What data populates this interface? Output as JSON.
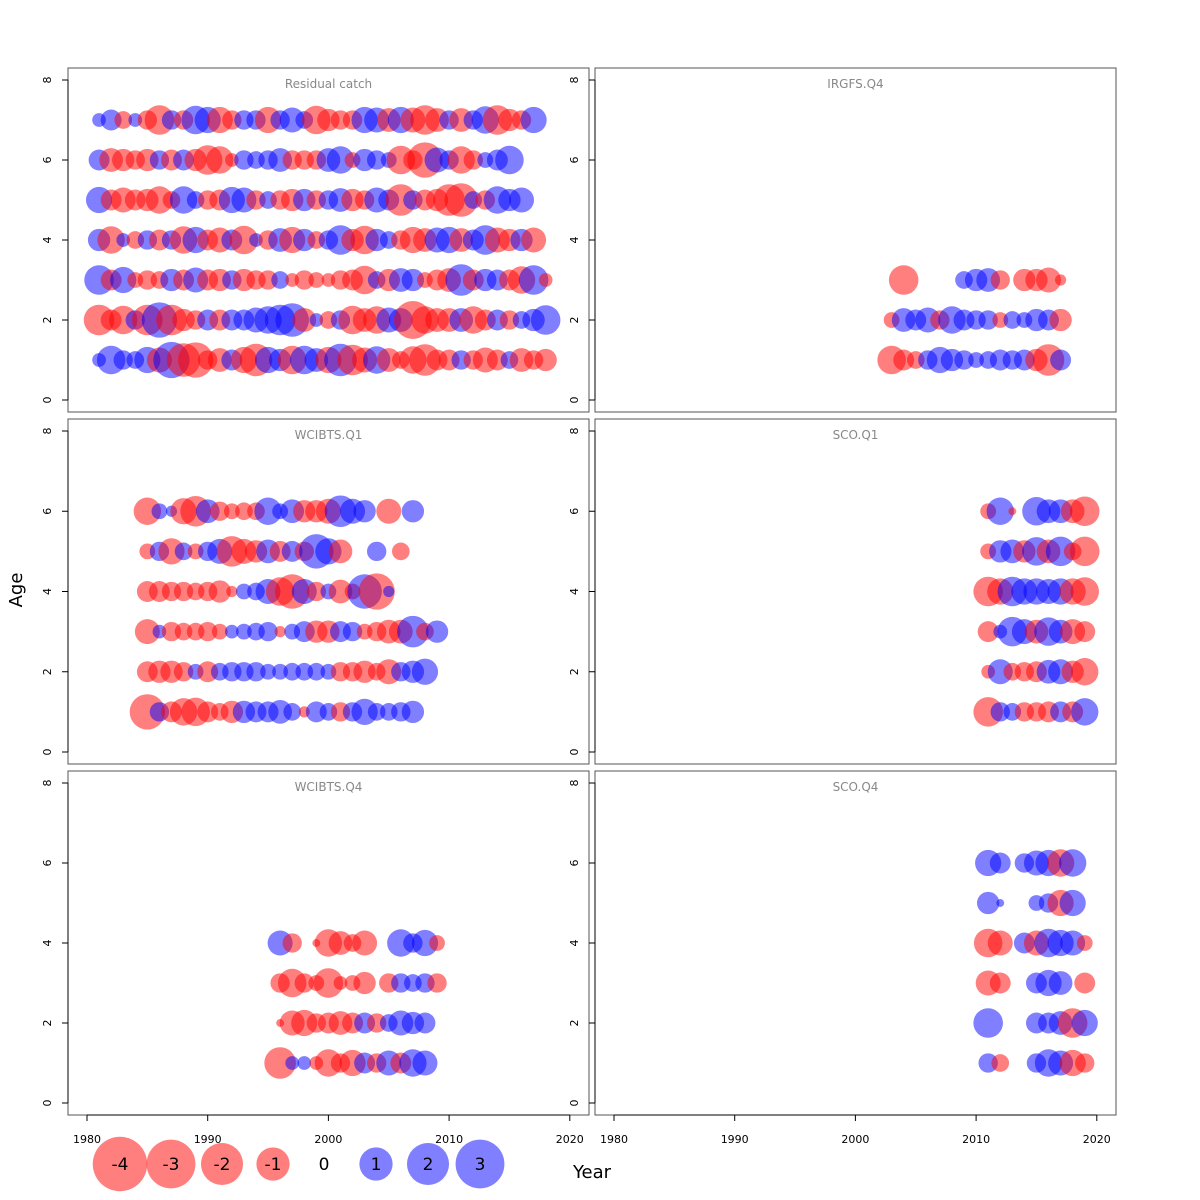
{
  "chart_data": {
    "type": "scatter",
    "subtype": "bubble-residuals",
    "xlabel": "Year",
    "ylabel": "Age",
    "xlim": [
      1980,
      2020
    ],
    "ylim": [
      0,
      8
    ],
    "x_ticks": [
      1980,
      1990,
      2000,
      2010,
      2020
    ],
    "y_ticks": [
      0,
      2,
      4,
      6,
      8
    ],
    "colors": {
      "positive": "#0000ff",
      "negative": "#ff0000",
      "fill_opacity": 0.5
    },
    "legend": {
      "placement": "bottom-left",
      "items": [
        {
          "label": "-4",
          "value": -4
        },
        {
          "label": "-3",
          "value": -3
        },
        {
          "label": "-2",
          "value": -2
        },
        {
          "label": "-1",
          "value": -1
        },
        {
          "label": "0",
          "value": 0
        },
        {
          "label": "1",
          "value": 1
        },
        {
          "label": "2",
          "value": 2
        },
        {
          "label": "3",
          "value": 3
        }
      ]
    },
    "panels": [
      {
        "title": "Residual catch",
        "rows": [
          {
            "age": 1,
            "start": 1981,
            "residuals": [
              0.3,
              1.3,
              0.6,
              0.5,
              1.1,
              -1.0,
              2.1,
              -1.8,
              -2.0,
              -0.6,
              -0.9,
              0.7,
              -1.1,
              -1.7,
              1.1,
              0.8,
              -1.3,
              1.3,
              0.9,
              -1.1,
              1.7,
              -1.5,
              -1.0,
              1.2,
              -0.9,
              -0.5,
              -1.2,
              -1.6,
              -0.7,
              -0.7,
              0.6,
              -0.6,
              -1.0,
              -0.7,
              0.5,
              -0.9,
              -0.6,
              -0.8
            ]
          },
          {
            "age": 2,
            "start": 1981,
            "residuals": [
              -1.5,
              -0.7,
              -1.3,
              0.6,
              -1.5,
              2.0,
              -1.5,
              -0.8,
              -0.6,
              0.7,
              -0.7,
              0.7,
              0.7,
              1.0,
              1.2,
              1.5,
              1.8,
              -0.9,
              0.3,
              -0.5,
              0.6,
              -1.3,
              -0.9,
              -1.2,
              1.0,
              0.9,
              -2.3,
              -1.2,
              -0.9,
              -0.9,
              0.9,
              -1.2,
              -0.7,
              0.7,
              -0.6,
              0.5,
              0.8,
              1.4
            ]
          },
          {
            "age": 3,
            "start": 1981,
            "residuals": [
              1.4,
              -0.7,
              1.1,
              -0.4,
              -0.6,
              -0.5,
              0.8,
              -0.7,
              1.0,
              -0.7,
              -0.8,
              0.6,
              -0.8,
              -0.6,
              -0.6,
              0.5,
              -0.3,
              -0.6,
              -0.4,
              -0.3,
              -0.6,
              -0.7,
              -1.3,
              0.5,
              -0.8,
              0.9,
              0.8,
              -0.4,
              -0.7,
              -0.9,
              1.6,
              -0.7,
              0.8,
              0.7,
              -0.7,
              -1.2,
              1.4,
              -0.3
            ]
          },
          {
            "age": 4,
            "start": 1981,
            "residuals": [
              0.8,
              -1.2,
              0.3,
              -0.5,
              0.6,
              -0.7,
              0.6,
              -1.2,
              1.1,
              -0.7,
              -1.0,
              0.7,
              -1.3,
              0.3,
              -0.6,
              0.9,
              -1.1,
              0.8,
              -0.5,
              0.6,
              1.4,
              -0.8,
              -1.3,
              0.8,
              0.5,
              -0.6,
              -1.1,
              -0.9,
              1.0,
              1.1,
              -0.9,
              0.7,
              1.4,
              -1.0,
              -0.8,
              0.8,
              -1.0
            ]
          },
          {
            "age": 5,
            "start": 1981,
            "residuals": [
              1.1,
              -0.7,
              -1.0,
              -0.7,
              -0.8,
              -1.2,
              -0.5,
              1.2,
              0.5,
              -0.6,
              -0.7,
              1.1,
              1.0,
              -0.6,
              0.5,
              -0.6,
              -0.8,
              0.8,
              -0.6,
              0.6,
              0.9,
              -0.8,
              -0.6,
              1.0,
              0.7,
              -1.6,
              0.6,
              -0.7,
              -0.8,
              -1.6,
              -1.8,
              0.5,
              -0.6,
              1.2,
              0.8,
              1.0
            ]
          },
          {
            "age": 6,
            "start": 1981,
            "residuals": [
              0.7,
              -0.9,
              -0.8,
              -0.6,
              -0.8,
              0.6,
              -0.7,
              0.7,
              -0.8,
              -1.4,
              -1.2,
              -0.3,
              0.6,
              0.5,
              0.6,
              0.9,
              -0.6,
              -0.6,
              -0.6,
              0.9,
              1.2,
              -0.4,
              0.8,
              0.6,
              0.4,
              -1.3,
              -0.6,
              -2.0,
              1.0,
              0.6,
              -1.2,
              -0.6,
              0.4,
              0.7,
              1.3
            ]
          },
          {
            "age": 7,
            "start": 1981,
            "residuals": [
              0.3,
              0.7,
              -0.5,
              0.3,
              -0.6,
              -1.4,
              0.6,
              -0.6,
              1.3,
              1.1,
              -1.1,
              -0.6,
              0.6,
              0.6,
              -1.1,
              0.6,
              1.0,
              0.5,
              -1.3,
              -0.8,
              -0.6,
              -0.6,
              1.1,
              1.0,
              -0.9,
              1.1,
              -1.0,
              -1.4,
              -0.9,
              0.6,
              -0.9,
              0.6,
              1.2,
              -1.4,
              -0.8,
              -0.6,
              1.1
            ]
          }
        ]
      },
      {
        "title": "IRGFS.Q4",
        "rows": [
          {
            "age": 1,
            "start": 2003,
            "residuals": [
              -1.3,
              -0.7,
              -0.5,
              0.6,
              1.1,
              0.8,
              0.6,
              0.4,
              0.5,
              0.7,
              0.6,
              0.7,
              -0.8,
              -1.6,
              0.7
            ]
          },
          {
            "age": 2,
            "start": 2003,
            "residuals": [
              -0.4,
              0.9,
              0.7,
              1.0,
              -0.6,
              1.2,
              0.7,
              0.6,
              0.6,
              -0.4,
              0.5,
              0.4,
              0.8,
              0.7,
              -0.8
            ]
          },
          {
            "age": 3,
            "start": 2004,
            "residuals": [
              -1.4,
              null,
              null,
              null,
              null,
              0.5,
              0.8,
              0.9,
              -0.6,
              null,
              -0.8,
              -0.8,
              -1.0,
              -0.2
            ]
          }
        ]
      },
      {
        "title": "WCIBTS.Q1",
        "rows": [
          {
            "age": 1,
            "start": 1985,
            "residuals": [
              -2.0,
              0.6,
              -0.7,
              -1.2,
              -1.3,
              -0.7,
              -0.5,
              -0.8,
              0.8,
              0.7,
              0.7,
              0.9,
              0.5,
              -0.2,
              0.7,
              0.5,
              -0.6,
              0.6,
              1.1,
              0.5,
              0.5,
              0.6,
              0.8
            ]
          },
          {
            "age": 2,
            "start": 1985,
            "residuals": [
              -0.7,
              -0.8,
              -0.8,
              -0.6,
              0.4,
              -0.7,
              0.5,
              0.6,
              0.6,
              0.6,
              0.4,
              0.4,
              0.5,
              0.5,
              0.5,
              0.4,
              -0.6,
              -0.6,
              -0.8,
              -0.5,
              -1.0,
              0.6,
              0.8,
              1.1
            ]
          },
          {
            "age": 3,
            "start": 1985,
            "residuals": [
              -1.0,
              0.3,
              -0.6,
              -0.5,
              -0.5,
              -0.6,
              -0.4,
              0.3,
              0.4,
              0.5,
              0.6,
              -0.2,
              0.4,
              0.7,
              -0.8,
              -0.8,
              0.7,
              0.6,
              -0.4,
              -0.6,
              -0.9,
              -0.9,
              1.6,
              -0.5,
              0.8
            ]
          },
          {
            "age": 4,
            "start": 1985,
            "residuals": [
              -0.7,
              -0.7,
              -0.6,
              -0.6,
              -0.5,
              -0.6,
              -0.8,
              -0.2,
              0.4,
              0.5,
              1.0,
              -1.3,
              -1.9,
              1.0,
              -0.6,
              0.4,
              -0.9,
              -0.4,
              1.9,
              -2.1,
              0.2
            ]
          },
          {
            "age": 5,
            "start": 1985,
            "residuals": [
              -0.4,
              0.6,
              -1.1,
              0.5,
              -0.4,
              0.6,
              1.0,
              -1.5,
              -1.0,
              -0.8,
              0.9,
              -0.7,
              0.7,
              -0.6,
              1.9,
              1.1,
              -0.9,
              null,
              null,
              0.6,
              null,
              -0.5
            ]
          },
          {
            "age": 6,
            "start": 1985,
            "residuals": [
              -1.2,
              0.4,
              0.2,
              -1.1,
              -1.5,
              0.9,
              -0.6,
              -0.4,
              -0.5,
              -0.5,
              1.2,
              0.4,
              0.9,
              -0.8,
              -0.8,
              -1.0,
              1.6,
              1.0,
              0.8,
              null,
              -1.0,
              null,
              0.8
            ]
          }
        ]
      },
      {
        "title": "SCO.Q1",
        "rows": [
          {
            "age": 1,
            "start": 2011,
            "residuals": [
              -1.4,
              0.6,
              0.5,
              -0.6,
              -0.6,
              -0.7,
              0.7,
              -0.7,
              1.2
            ]
          },
          {
            "age": 2,
            "start": 2011,
            "residuals": [
              -0.3,
              1.0,
              -0.5,
              -0.6,
              -0.7,
              0.9,
              1.0,
              -0.8,
              -1.2
            ]
          },
          {
            "age": 3,
            "start": 2011,
            "residuals": [
              -0.7,
              0.3,
              1.4,
              1.0,
              -0.9,
              1.3,
              0.9,
              -1.0,
              -0.7
            ]
          },
          {
            "age": 4,
            "start": 2011,
            "residuals": [
              -1.4,
              -1.1,
              1.4,
              1.1,
              1.1,
              1.0,
              1.1,
              -1.1,
              -1.3
            ]
          },
          {
            "age": 5,
            "start": 2011,
            "residuals": [
              -0.4,
              0.8,
              0.9,
              -0.8,
              1.3,
              -0.9,
              1.4,
              -0.5,
              -1.4
            ]
          },
          {
            "age": 6,
            "start": 2011,
            "residuals": [
              -0.4,
              1.2,
              -0.1,
              null,
              1.3,
              0.9,
              0.9,
              -0.9,
              -1.4
            ]
          }
        ]
      },
      {
        "title": "WCIBTS.Q4",
        "rows": [
          {
            "age": 1,
            "start": 1996,
            "residuals": [
              -1.6,
              0.3,
              0.3,
              -0.3,
              -1.2,
              -0.6,
              -1.1,
              0.7,
              -0.6,
              1.0,
              -0.7,
              1.2,
              1.0
            ]
          },
          {
            "age": 2,
            "start": 1996,
            "residuals": [
              -0.1,
              -1.0,
              -1.1,
              -0.6,
              -0.7,
              -0.9,
              -0.7,
              0.7,
              -0.6,
              0.5,
              1.0,
              0.8,
              0.7
            ]
          },
          {
            "age": 3,
            "start": 1996,
            "residuals": [
              -0.6,
              -1.3,
              -0.6,
              -0.4,
              -1.4,
              -0.3,
              -0.4,
              -0.8,
              null,
              -0.6,
              0.6,
              0.5,
              0.6,
              -0.6
            ]
          },
          {
            "age": 4,
            "start": 1996,
            "residuals": [
              1.0,
              -0.6,
              null,
              -0.1,
              -1.2,
              -0.9,
              -0.5,
              -1.0,
              null,
              null,
              1.2,
              0.6,
              1.1,
              -0.4
            ]
          }
        ]
      },
      {
        "title": "SCO.Q4",
        "rows": [
          {
            "age": 1,
            "start": 2011,
            "residuals": [
              0.6,
              -0.5,
              null,
              null,
              0.6,
              1.2,
              1.0,
              -1.1,
              -0.6
            ]
          },
          {
            "age": 2,
            "start": 2011,
            "residuals": [
              1.4,
              null,
              null,
              null,
              0.7,
              0.7,
              0.9,
              -1.4,
              1.1
            ]
          },
          {
            "age": 3,
            "start": 2011,
            "residuals": [
              -1.0,
              -0.7,
              null,
              null,
              0.7,
              1.1,
              0.9,
              null,
              -0.7
            ]
          },
          {
            "age": 4,
            "start": 2011,
            "residuals": [
              -1.3,
              -1.0,
              null,
              0.7,
              -1.0,
              1.3,
              1.1,
              1.0,
              -0.4
            ]
          },
          {
            "age": 5,
            "start": 2011,
            "residuals": [
              0.8,
              0.1,
              null,
              null,
              0.4,
              0.6,
              -1.1,
              1.1,
              null
            ]
          },
          {
            "age": 6,
            "start": 2011,
            "residuals": [
              1.1,
              0.7,
              null,
              0.6,
              1.0,
              1.1,
              -1.2,
              1.2,
              null
            ]
          }
        ]
      }
    ]
  }
}
